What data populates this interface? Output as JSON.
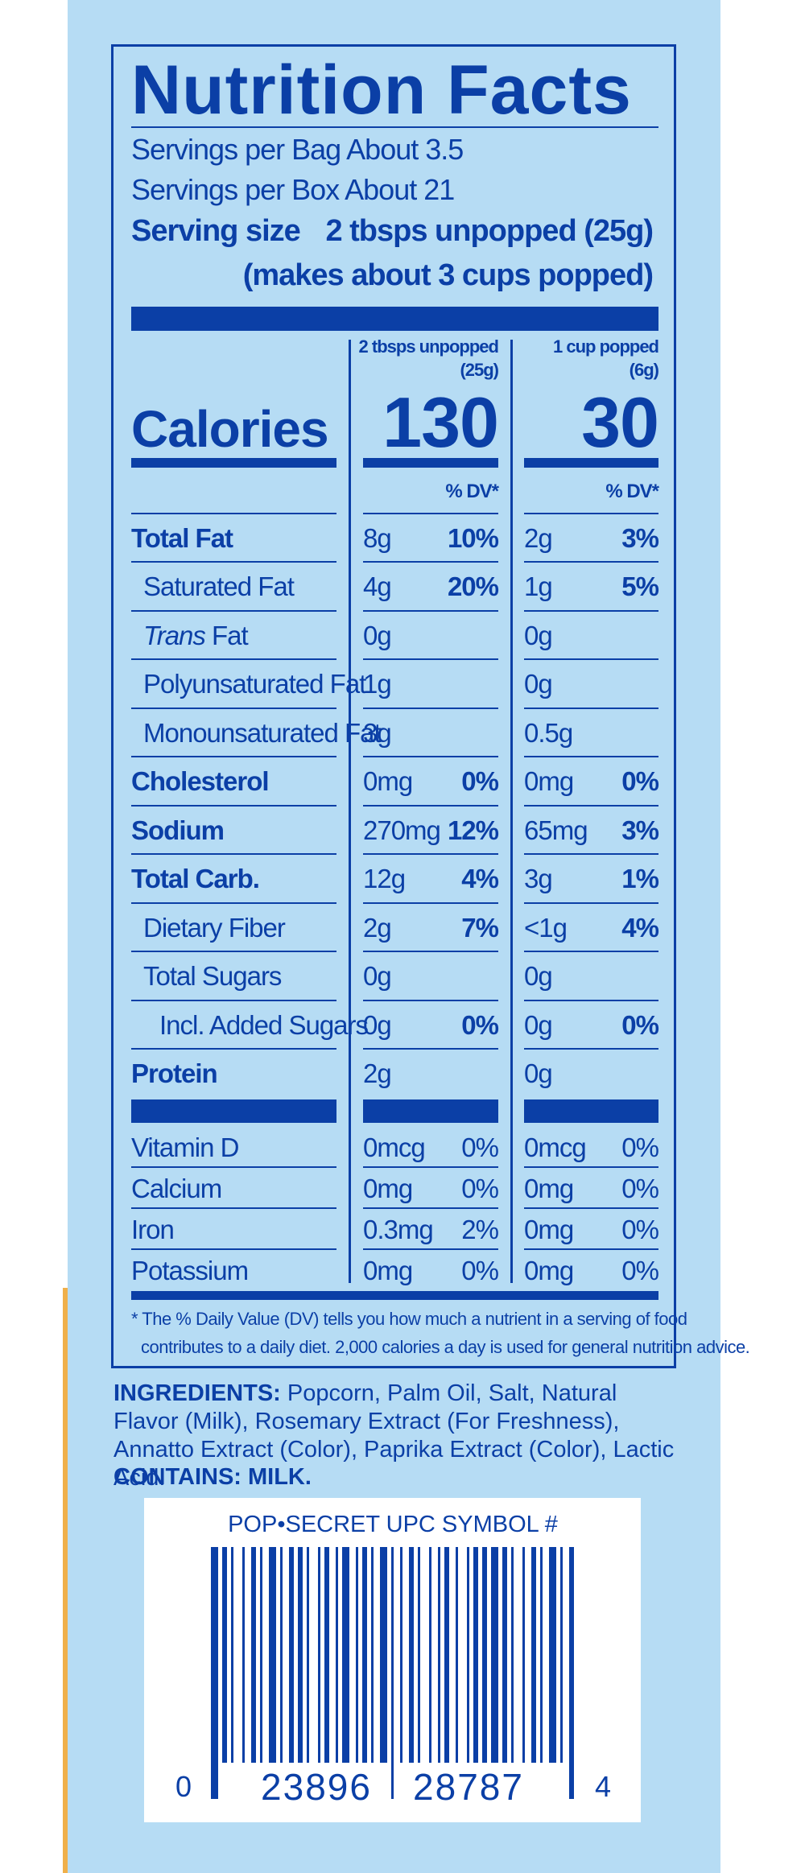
{
  "title": "Nutrition Facts",
  "servings": [
    "Servings per Bag About 3.5",
    "Servings per Box About 21"
  ],
  "serving_size": {
    "label": "Serving size",
    "amount": "2 tbsps unpopped (25g)",
    "note": "(makes about 3 cups popped)"
  },
  "calories_label": "Calories",
  "columns": [
    {
      "header": [
        "2 tbsps unpopped",
        "(25g)"
      ],
      "calories": 130,
      "dv_header": "% DV*"
    },
    {
      "header": [
        "1 cup popped",
        "(6g)"
      ],
      "calories": 30,
      "dv_header": "% DV*"
    }
  ],
  "nutrients": [
    {
      "name": "Total Fat",
      "values": [
        [
          "8g",
          "10%"
        ],
        [
          "2g",
          "3%"
        ]
      ],
      "sub": [
        {
          "name": "Saturated Fat",
          "values": [
            [
              "4g",
              "20%"
            ],
            [
              "1g",
              "5%"
            ]
          ]
        },
        {
          "name_italic": "Trans",
          "name": "Fat",
          "values": [
            [
              "0g"
            ],
            [
              "0g"
            ]
          ]
        },
        {
          "name": "Polyunsaturated Fat",
          "values": [
            [
              "1g"
            ],
            [
              "0g"
            ]
          ]
        },
        {
          "name": "Monounsaturated Fat",
          "values": [
            [
              "3g"
            ],
            [
              "0.5g"
            ]
          ]
        }
      ]
    },
    {
      "name": "Cholesterol",
      "values": [
        [
          "0mg",
          "0%"
        ],
        [
          "0mg",
          "0%"
        ]
      ]
    },
    {
      "name": "Sodium",
      "values": [
        [
          "270mg",
          "12%"
        ],
        [
          "65mg",
          "3%"
        ]
      ]
    },
    {
      "name": "Total Carb.",
      "values": [
        [
          "12g",
          "4%"
        ],
        [
          "3g",
          "1%"
        ]
      ],
      "sub": [
        {
          "name": "Dietary Fiber",
          "values": [
            [
              "2g",
              "7%"
            ],
            [
              "<1g",
              "4%"
            ]
          ]
        },
        {
          "name": "Total Sugars",
          "values": [
            [
              "0g"
            ],
            [
              "0g"
            ]
          ],
          "sub": [
            {
              "name": "Incl. Added Sugars",
              "values": [
                [
                  "0g",
                  "0%"
                ],
                [
                  "0g",
                  "0%"
                ]
              ]
            }
          ]
        }
      ]
    },
    {
      "name": "Protein",
      "values": [
        [
          "2g"
        ],
        [
          "0g"
        ]
      ]
    }
  ],
  "vitamins": [
    {
      "name": "Vitamin D",
      "values": [
        [
          "0mcg",
          "0%"
        ],
        [
          "0mcg",
          "0%"
        ]
      ]
    },
    {
      "name": "Calcium",
      "values": [
        [
          "0mg",
          "0%"
        ],
        [
          "0mg",
          "0%"
        ]
      ]
    },
    {
      "name": "Iron",
      "values": [
        [
          "0.3mg",
          "2%"
        ],
        [
          "0mg",
          "0%"
        ]
      ]
    },
    {
      "name": "Potassium",
      "values": [
        [
          "0mg",
          "0%"
        ],
        [
          "0mg",
          "0%"
        ]
      ]
    }
  ],
  "footnote": [
    "* The % Daily Value (DV) tells you how much a nutrient in a serving of food",
    "contributes to a daily diet. 2,000 calories a day is used for general nutrition advice."
  ],
  "ingredients": {
    "label": "INGREDIENTS:",
    "text": "Popcorn, Palm Oil, Salt, Natural Flavor (Milk), Rosemary Extract (For Freshness), Annatto Extract (Color), Paprika Extract (Color), Lactic Acid."
  },
  "contains": "CONTAINS: MILK.",
  "barcode": {
    "caption": "POP•SECRET UPC SYMBOL #",
    "digits": [
      "0",
      "23896",
      "28787",
      "4"
    ]
  }
}
